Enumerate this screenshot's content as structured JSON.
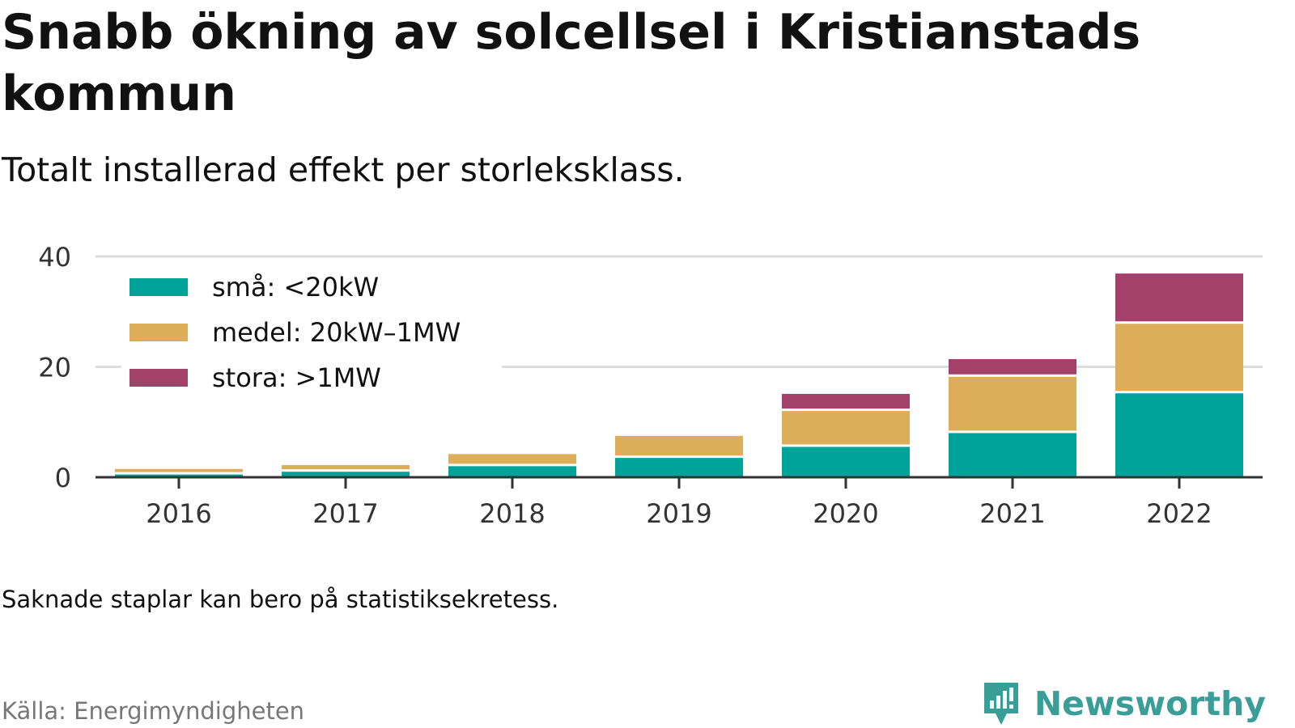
{
  "header": {
    "title": "Snabb ökning av solcellsel i Kristianstads kommun",
    "subtitle": "Totalt installerad effekt per storleksklass."
  },
  "footer": {
    "note": "Saknade staplar kan bero på statistiksekretess.",
    "source": "Källa: Energimyndigheten",
    "brand": "Newsworthy"
  },
  "colors": {
    "sma": "#00a39a",
    "medel": "#dcae5a",
    "stora": "#a4416a",
    "brand": "#3a9e98"
  },
  "chart_data": {
    "type": "bar",
    "stacked": true,
    "categories": [
      "2016",
      "2017",
      "2018",
      "2019",
      "2020",
      "2021",
      "2022"
    ],
    "series": [
      {
        "name": "små: <20kW",
        "color": "#00a39a",
        "values": [
          0.5,
          1.0,
          2.0,
          3.5,
          5.5,
          8.0,
          15.2
        ]
      },
      {
        "name": "medel: 20kW–1MW",
        "color": "#dcae5a",
        "values": [
          1.0,
          1.2,
          2.2,
          4.0,
          6.5,
          10.2,
          12.6
        ]
      },
      {
        "name": "stora: >1MW",
        "color": "#a4416a",
        "values": [
          0,
          0,
          0,
          0,
          3.1,
          3.2,
          9.1
        ]
      }
    ],
    "ylim": [
      0,
      40
    ],
    "yticks": [
      "0",
      "20",
      "40"
    ],
    "grid": true,
    "legend": "top-left",
    "xlabel": "",
    "ylabel": ""
  }
}
